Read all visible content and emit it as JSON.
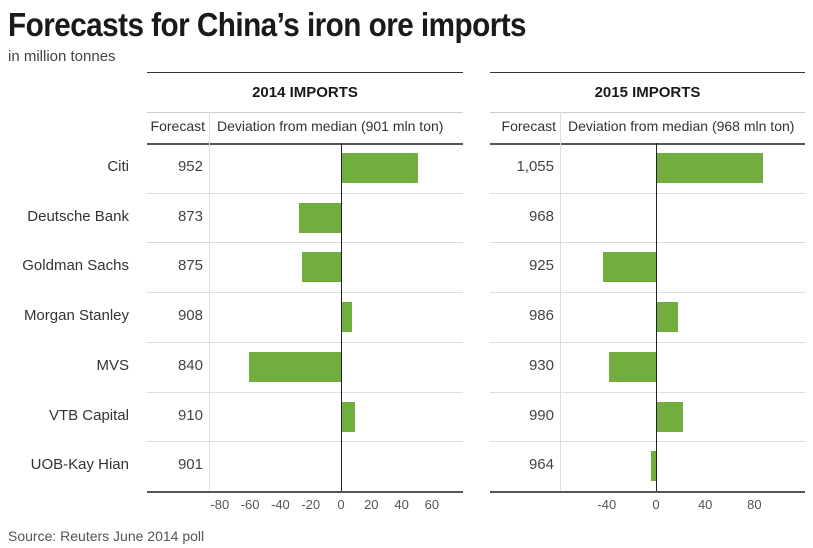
{
  "title": "Forecasts for China’s iron ore imports",
  "subtitle": "in million tonnes",
  "source": "Source: Reuters June 2014 poll",
  "bar_color": "#72ad3f",
  "chart_data": [
    {
      "type": "bar",
      "orientation": "horizontal",
      "title": "2014 IMPORTS",
      "forecast_header": "Forecast",
      "xlabel": "Deviation from median (901 mln ton)",
      "median": 901,
      "categories": [
        "Citi",
        "Deutsche Bank",
        "Goldman Sachs",
        "Morgan Stanley",
        "MVS",
        "VTB Capital",
        "UOB-Kay Hian"
      ],
      "forecasts": [
        "952",
        "873",
        "875",
        "908",
        "840",
        "910",
        "901"
      ],
      "values": [
        51,
        -28,
        -26,
        7,
        -61,
        9,
        0
      ],
      "xlim": [
        -88,
        80
      ],
      "ticks": [
        -80,
        -60,
        -40,
        -20,
        0,
        20,
        40,
        60
      ]
    },
    {
      "type": "bar",
      "orientation": "horizontal",
      "title": "2015 IMPORTS",
      "forecast_header": "Forecast",
      "xlabel": "Deviation from median (968 mln ton)",
      "median": 968,
      "categories": [
        "Citi",
        "Deutsche Bank",
        "Goldman Sachs",
        "Morgan Stanley",
        "MVS",
        "VTB Capital",
        "UOB-Kay Hian"
      ],
      "forecasts": [
        "1,055",
        "968",
        "925",
        "986",
        "930",
        "990",
        "964"
      ],
      "values": [
        87,
        0,
        -43,
        18,
        -38,
        22,
        -4
      ],
      "xlim": [
        -78,
        120
      ],
      "ticks": [
        -40,
        0,
        40,
        80
      ]
    }
  ]
}
